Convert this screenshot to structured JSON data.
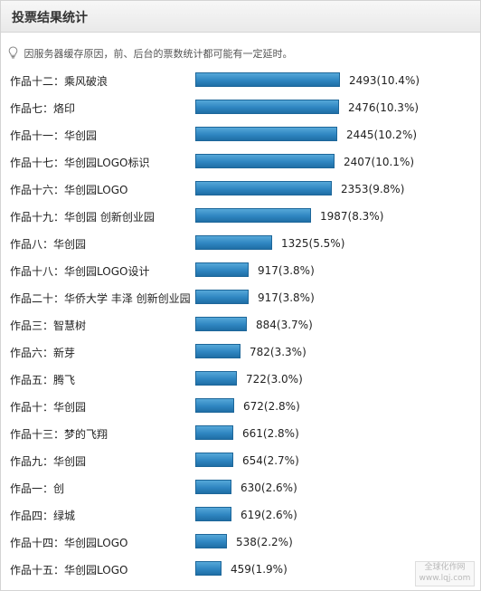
{
  "header": {
    "title": "投票结果统计"
  },
  "notice": {
    "icon": "lightbulb-icon",
    "text": "因服务器缓存原因，前、后台的票数统计都可能有一定延时。"
  },
  "bar_color": "#2f86c1",
  "chart_data": {
    "type": "bar",
    "orientation": "horizontal",
    "categories": [
      "作品十二：乘风破浪",
      "作品七：烙印",
      "作品十一：华创园",
      "作品十七：华创园LOGO标识",
      "作品十六：华创园LOGO",
      "作品十九：华创园 创新创业园",
      "作品八：华创园",
      "作品十八：华创园LOGO设计",
      "作品二十：华侨大学 丰泽 创新创业园",
      "作品三：智慧树",
      "作品六：新芽",
      "作品五：腾飞",
      "作品十：华创园",
      "作品十三：梦的飞翔",
      "作品九：华创园",
      "作品一：创",
      "作品四：绿城",
      "作品十四：华创园LOGO",
      "作品十五：华创园LOGO"
    ],
    "values": [
      2493,
      2476,
      2445,
      2407,
      2353,
      1987,
      1325,
      917,
      917,
      884,
      782,
      722,
      672,
      661,
      654,
      630,
      619,
      538,
      459
    ],
    "value_labels": [
      "2493(10.4%)",
      "2476(10.3%)",
      "2445(10.2%)",
      "2407(10.1%)",
      "2353(9.8%)",
      "1987(8.3%)",
      "1325(5.5%)",
      "917(3.8%)",
      "917(3.8%)",
      "884(3.7%)",
      "782(3.3%)",
      "722(3.0%)",
      "672(2.8%)",
      "661(2.8%)",
      "654(2.7%)",
      "630(2.6%)",
      "619(2.6%)",
      "538(2.2%)",
      "459(1.9%)"
    ]
  },
  "watermark": {
    "line1": "全球化作网",
    "line2": "www.lqj.com"
  }
}
